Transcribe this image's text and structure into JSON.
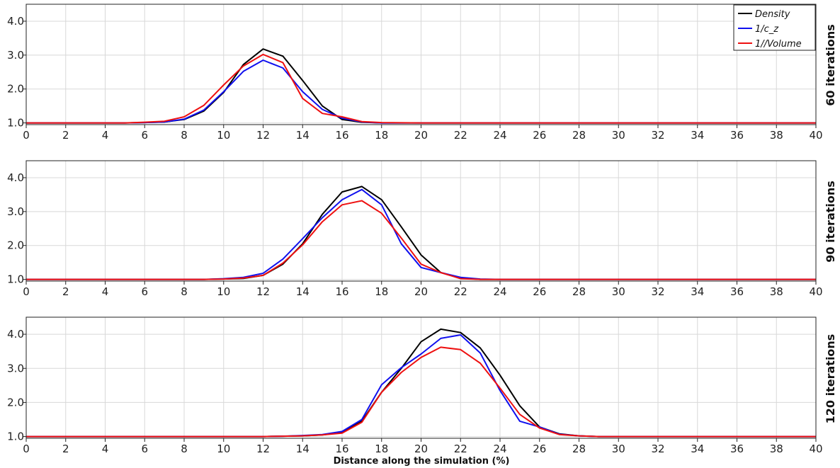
{
  "colors": {
    "Density": "#000000",
    "1/c_z": "#1010ee",
    "1//Volume": "#ee1010",
    "grid": "#d8d8d8",
    "axis": "#222222"
  },
  "chart_data": [
    {
      "type": "line",
      "side_label": "60 iterations",
      "xlabel": "",
      "xlim": [
        0,
        40
      ],
      "ylim": [
        0.95,
        4.5
      ],
      "x_ticks": [
        0,
        2,
        4,
        6,
        8,
        10,
        12,
        14,
        16,
        18,
        20,
        22,
        24,
        26,
        28,
        30,
        32,
        34,
        36,
        38,
        40
      ],
      "y_ticks": [
        "1.0",
        "2.0",
        "3.0",
        "4.0"
      ],
      "grid": true,
      "legend": {
        "placement": "top-right",
        "entries": [
          "Density",
          "1/c_z",
          "1//Volume"
        ]
      },
      "x": [
        0,
        5,
        6,
        7,
        8,
        9,
        10,
        11,
        12,
        13,
        14,
        15,
        16,
        17,
        18,
        20,
        40
      ],
      "series": [
        {
          "name": "Density",
          "values": [
            1.0,
            1.0,
            1.01,
            1.03,
            1.1,
            1.35,
            1.9,
            2.72,
            3.18,
            2.97,
            2.25,
            1.5,
            1.1,
            1.02,
            1.0,
            1.0,
            1.0
          ]
        },
        {
          "name": "1/c_z",
          "values": [
            1.0,
            1.0,
            1.01,
            1.03,
            1.11,
            1.38,
            1.92,
            2.52,
            2.85,
            2.62,
            1.92,
            1.4,
            1.14,
            1.03,
            1.0,
            1.0,
            1.0
          ]
        },
        {
          "name": "1//Volume",
          "values": [
            1.0,
            1.0,
            1.02,
            1.05,
            1.18,
            1.52,
            2.12,
            2.68,
            3.02,
            2.78,
            1.72,
            1.28,
            1.18,
            1.04,
            1.01,
            1.0,
            1.0
          ]
        }
      ]
    },
    {
      "type": "line",
      "side_label": "90 iterations",
      "xlabel": "",
      "xlim": [
        0,
        40
      ],
      "ylim": [
        0.95,
        4.5
      ],
      "x_ticks": [
        0,
        2,
        4,
        6,
        8,
        10,
        12,
        14,
        16,
        18,
        20,
        22,
        24,
        26,
        28,
        30,
        32,
        34,
        36,
        38,
        40
      ],
      "y_ticks": [
        "1.0",
        "2.0",
        "3.0",
        "4.0"
      ],
      "grid": true,
      "x": [
        0,
        9,
        10,
        11,
        12,
        13,
        14,
        15,
        16,
        17,
        18,
        19,
        20,
        21,
        22,
        23,
        24,
        40
      ],
      "series": [
        {
          "name": "Density",
          "values": [
            1.0,
            1.0,
            1.01,
            1.03,
            1.12,
            1.45,
            2.05,
            2.92,
            3.58,
            3.74,
            3.35,
            2.55,
            1.72,
            1.2,
            1.04,
            1.0,
            1.0,
            1.0
          ]
        },
        {
          "name": "1/c_z",
          "values": [
            1.0,
            1.0,
            1.02,
            1.06,
            1.18,
            1.6,
            2.2,
            2.82,
            3.35,
            3.65,
            3.2,
            2.05,
            1.35,
            1.2,
            1.06,
            1.01,
            1.0,
            1.0
          ]
        },
        {
          "name": "1//Volume",
          "values": [
            1.0,
            1.0,
            1.01,
            1.04,
            1.12,
            1.48,
            2.02,
            2.7,
            3.2,
            3.32,
            2.95,
            2.22,
            1.45,
            1.2,
            1.02,
            1.0,
            1.0,
            1.0
          ]
        }
      ]
    },
    {
      "type": "line",
      "side_label": "120 iterations",
      "xlabel": "Distance along the simulation (%)",
      "xlim": [
        0,
        40
      ],
      "ylim": [
        0.95,
        4.5
      ],
      "x_ticks": [
        0,
        2,
        4,
        6,
        8,
        10,
        12,
        14,
        16,
        18,
        20,
        22,
        24,
        26,
        28,
        30,
        32,
        34,
        36,
        38,
        40
      ],
      "y_ticks": [
        "1.0",
        "2.0",
        "3.0",
        "4.0"
      ],
      "grid": true,
      "x": [
        0,
        12,
        13,
        14,
        15,
        16,
        17,
        18,
        19,
        20,
        21,
        22,
        23,
        24,
        25,
        26,
        27,
        28,
        29,
        40
      ],
      "series": [
        {
          "name": "Density",
          "values": [
            1.0,
            1.0,
            1.01,
            1.02,
            1.05,
            1.12,
            1.45,
            2.3,
            3.0,
            3.78,
            4.15,
            4.05,
            3.6,
            2.8,
            1.9,
            1.28,
            1.08,
            1.02,
            1.0,
            1.0
          ]
        },
        {
          "name": "1/c_z",
          "values": [
            1.0,
            1.0,
            1.01,
            1.03,
            1.06,
            1.15,
            1.5,
            2.52,
            3.02,
            3.42,
            3.88,
            3.98,
            3.45,
            2.35,
            1.45,
            1.28,
            1.07,
            1.02,
            1.0,
            1.0
          ]
        },
        {
          "name": "1//Volume",
          "values": [
            1.0,
            1.0,
            1.01,
            1.02,
            1.05,
            1.1,
            1.42,
            2.3,
            2.88,
            3.32,
            3.62,
            3.55,
            3.15,
            2.42,
            1.65,
            1.25,
            1.06,
            1.02,
            1.0,
            1.0
          ]
        }
      ]
    }
  ]
}
